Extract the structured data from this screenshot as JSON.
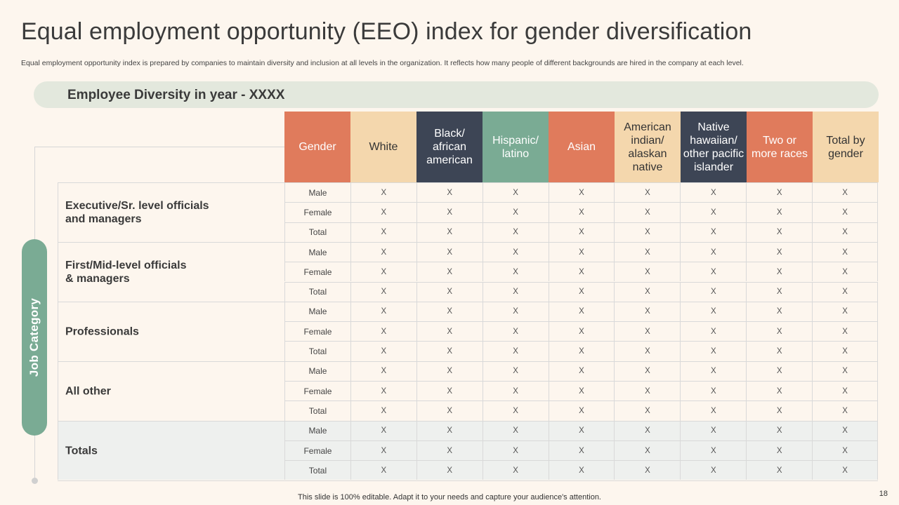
{
  "title": "Equal employment opportunity (EEO) index for gender diversification",
  "subtitle": "Equal employment opportunity index is prepared by companies to maintain diversity and inclusion at all levels in the organization. It reflects how many people of different backgrounds are hired in the company at each level.",
  "banner": "Employee Diversity in year - XXXX",
  "side_label": "Job Category",
  "columns": [
    {
      "label": "Gender",
      "bg": "#e07b5c",
      "text": "light"
    },
    {
      "label": "White",
      "bg": "#f4d7ad",
      "text": "dark"
    },
    {
      "label": "Black/ african american",
      "bg": "#3d4555",
      "text": "light"
    },
    {
      "label": "Hispanic/ latino",
      "bg": "#7aab94",
      "text": "light"
    },
    {
      "label": "Asian",
      "bg": "#e07b5c",
      "text": "light"
    },
    {
      "label": "American indian/ alaskan native",
      "bg": "#f4d7ad",
      "text": "dark"
    },
    {
      "label": "Native hawaiian/ other pacific islander",
      "bg": "#3d4555",
      "text": "light"
    },
    {
      "label": "Two or more races",
      "bg": "#e07b5c",
      "text": "light"
    },
    {
      "label": "Total by gender",
      "bg": "#f4d7ad",
      "text": "dark"
    }
  ],
  "categories": [
    {
      "lines": [
        "Executive/Sr.  level officials",
        "and managers"
      ],
      "shaded": false,
      "rows": [
        {
          "gender": "Male",
          "values": [
            "X",
            "X",
            "X",
            "X",
            "X",
            "X",
            "X",
            "X"
          ]
        },
        {
          "gender": "Female",
          "values": [
            "X",
            "X",
            "X",
            "X",
            "X",
            "X",
            "X",
            "X"
          ]
        },
        {
          "gender": "Total",
          "values": [
            "X",
            "X",
            "X",
            "X",
            "X",
            "X",
            "X",
            "X"
          ]
        }
      ]
    },
    {
      "lines": [
        "First/Mid-level officials",
        "& managers"
      ],
      "shaded": false,
      "rows": [
        {
          "gender": "Male",
          "values": [
            "X",
            "X",
            "X",
            "X",
            "X",
            "X",
            "X",
            "X"
          ]
        },
        {
          "gender": "Female",
          "values": [
            "X",
            "X",
            "X",
            "X",
            "X",
            "X",
            "X",
            "X"
          ]
        },
        {
          "gender": "Total",
          "values": [
            "X",
            "X",
            "X",
            "X",
            "X",
            "X",
            "X",
            "X"
          ]
        }
      ]
    },
    {
      "lines": [
        "Professionals"
      ],
      "shaded": false,
      "rows": [
        {
          "gender": "Male",
          "values": [
            "X",
            "X",
            "X",
            "X",
            "X",
            "X",
            "X",
            "X"
          ]
        },
        {
          "gender": "Female",
          "values": [
            "X",
            "X",
            "X",
            "X",
            "X",
            "X",
            "X",
            "X"
          ]
        },
        {
          "gender": "Total",
          "values": [
            "X",
            "X",
            "X",
            "X",
            "X",
            "X",
            "X",
            "X"
          ]
        }
      ]
    },
    {
      "lines": [
        "All other"
      ],
      "shaded": false,
      "rows": [
        {
          "gender": "Male",
          "values": [
            "X",
            "X",
            "X",
            "X",
            "X",
            "X",
            "X",
            "X"
          ]
        },
        {
          "gender": "Female",
          "values": [
            "X",
            "X",
            "X",
            "X",
            "X",
            "X",
            "X",
            "X"
          ]
        },
        {
          "gender": "Total",
          "values": [
            "X",
            "X",
            "X",
            "X",
            "X",
            "X",
            "X",
            "X"
          ]
        }
      ]
    },
    {
      "lines": [
        "Totals"
      ],
      "shaded": true,
      "rows": [
        {
          "gender": "Male",
          "values": [
            "X",
            "X",
            "X",
            "X",
            "X",
            "X",
            "X",
            "X"
          ]
        },
        {
          "gender": "Female",
          "values": [
            "X",
            "X",
            "X",
            "X",
            "X",
            "X",
            "X",
            "X"
          ]
        },
        {
          "gender": "Total",
          "values": [
            "X",
            "X",
            "X",
            "X",
            "X",
            "X",
            "X",
            "X"
          ]
        }
      ]
    }
  ],
  "footer": "This slide is 100% editable. Adapt it to your needs and capture your audience's attention.",
  "page_number": "18"
}
